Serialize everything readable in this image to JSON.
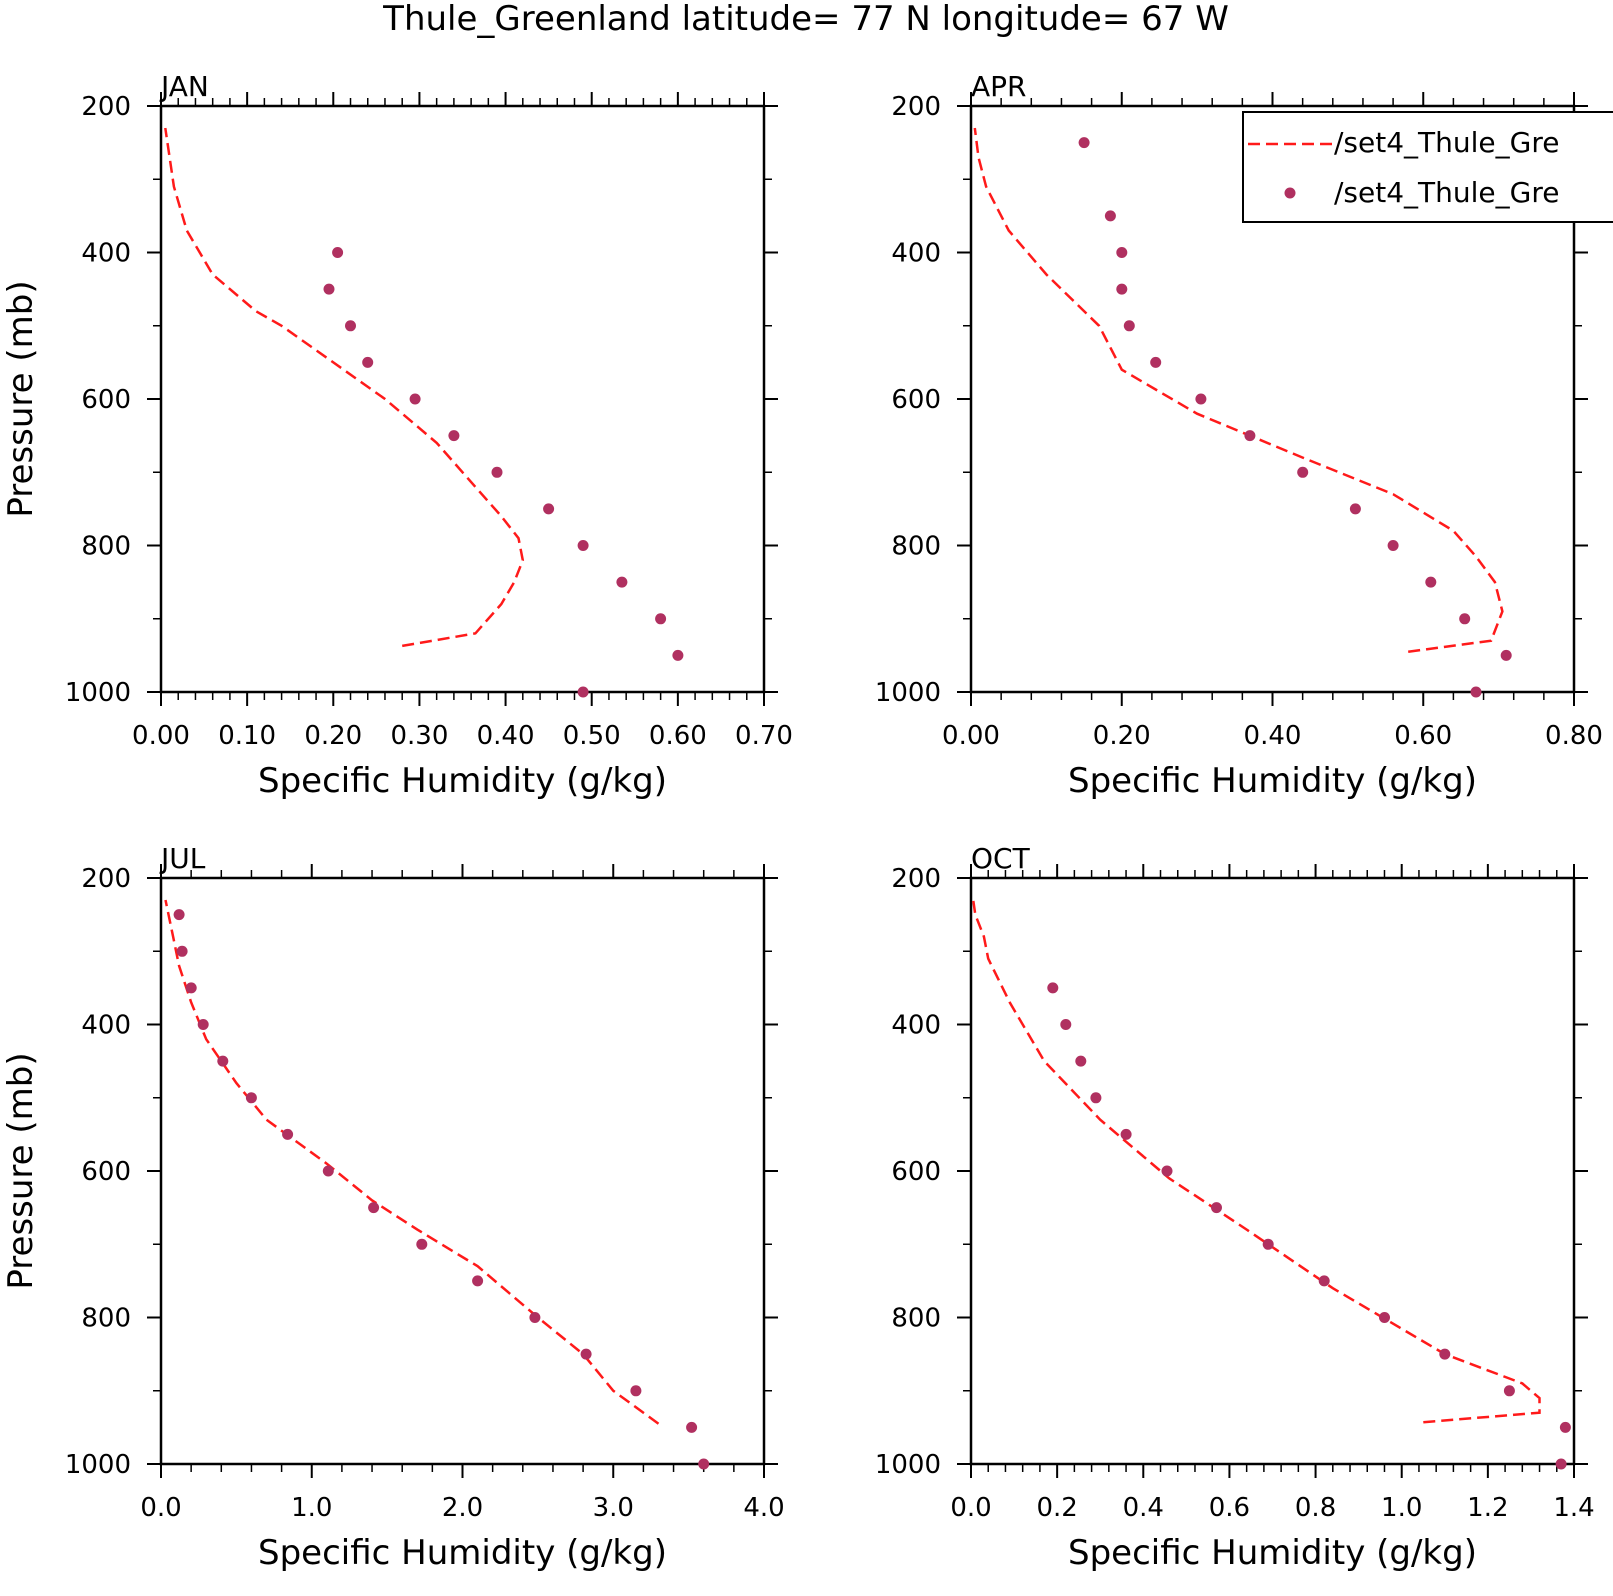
{
  "figure": {
    "title": "Thule_Greenland  latitude= 77 N longitude= 67 W"
  },
  "legend": {
    "entries": [
      {
        "label": "/set4_Thule_Gre",
        "style": "dashed-line",
        "color": "#ff1a1a"
      },
      {
        "label": "/set4_Thule_Gre",
        "style": "dot",
        "color": "#b03060"
      }
    ]
  },
  "colors": {
    "model_line": "#ff1a1a",
    "obs_dots": "#b03060",
    "axes": "#000000"
  },
  "chart_data": [
    {
      "type": "line",
      "panel": "JAN",
      "xlabel": "Specific Humidity (g/kg)",
      "ylabel": "Pressure (mb)",
      "xlim": [
        0,
        0.7
      ],
      "ylim": [
        1000,
        200
      ],
      "x_ticks": [
        0,
        0.1,
        0.2,
        0.3,
        0.4,
        0.5,
        0.6,
        0.7
      ],
      "x_tick_labels": [
        "0.00",
        "0.10",
        "0.20",
        "0.30",
        "0.40",
        "0.50",
        "0.60",
        "0.70"
      ],
      "y_ticks": [
        200,
        400,
        600,
        800,
        1000
      ],
      "y_tick_labels": [
        "200",
        "400",
        "600",
        "800",
        "1000"
      ],
      "series": [
        {
          "style": "dashed-line",
          "x": [
            0.28,
            0.365,
            0.395,
            0.41,
            0.42,
            0.415,
            0.395,
            0.365,
            0.32,
            0.26,
            0.2,
            0.14,
            0.11,
            0.06,
            0.03,
            0.015,
            0.01,
            0.005
          ],
          "y": [
            937,
            920,
            880,
            850,
            820,
            790,
            760,
            720,
            660,
            600,
            550,
            500,
            480,
            430,
            370,
            310,
            270,
            230
          ]
        },
        {
          "style": "dots",
          "x": [
            0.205,
            0.195,
            0.22,
            0.24,
            0.295,
            0.34,
            0.39,
            0.45,
            0.49,
            0.535,
            0.58,
            0.6,
            0.49
          ],
          "y": [
            400,
            450,
            500,
            550,
            600,
            650,
            700,
            750,
            800,
            850,
            900,
            950,
            1000
          ]
        }
      ]
    },
    {
      "type": "line",
      "panel": "APR",
      "xlabel": "Specific Humidity (g/kg)",
      "ylabel": "",
      "xlim": [
        0,
        0.8
      ],
      "ylim": [
        1000,
        200
      ],
      "x_ticks": [
        0,
        0.2,
        0.4,
        0.6,
        0.8
      ],
      "x_tick_labels": [
        "0.00",
        "0.20",
        "0.40",
        "0.60",
        "0.80"
      ],
      "y_ticks": [
        200,
        400,
        600,
        800,
        1000
      ],
      "y_tick_labels": [
        "200",
        "400",
        "600",
        "800",
        "1000"
      ],
      "series": [
        {
          "style": "dashed-line",
          "x": [
            0.58,
            0.69,
            0.705,
            0.695,
            0.67,
            0.64,
            0.56,
            0.44,
            0.3,
            0.2,
            0.17,
            0.1,
            0.05,
            0.02,
            0.01,
            0.005
          ],
          "y": [
            945,
            930,
            890,
            850,
            815,
            780,
            730,
            680,
            620,
            560,
            500,
            430,
            370,
            310,
            270,
            230
          ]
        },
        {
          "style": "dots",
          "x": [
            0.15,
            0.185,
            0.2,
            0.2,
            0.21,
            0.245,
            0.305,
            0.37,
            0.44,
            0.51,
            0.56,
            0.61,
            0.655,
            0.71,
            0.67
          ],
          "y": [
            250,
            350,
            400,
            450,
            500,
            550,
            600,
            650,
            700,
            750,
            800,
            850,
            900,
            950,
            1000
          ]
        }
      ]
    },
    {
      "type": "line",
      "panel": "JUL",
      "xlabel": "Specific Humidity (g/kg)",
      "ylabel": "Pressure (mb)",
      "xlim": [
        0,
        4
      ],
      "ylim": [
        1000,
        200
      ],
      "x_ticks": [
        0,
        1,
        2,
        3,
        4
      ],
      "x_tick_labels": [
        "0.0",
        "1.0",
        "2.0",
        "3.0",
        "4.0"
      ],
      "y_ticks": [
        200,
        400,
        600,
        800,
        1000
      ],
      "y_tick_labels": [
        "200",
        "400",
        "600",
        "800",
        "1000"
      ],
      "series": [
        {
          "style": "dashed-line",
          "x": [
            3.3,
            3.0,
            2.8,
            2.5,
            2.1,
            1.7,
            1.4,
            1.1,
            0.7,
            0.5,
            0.3,
            0.2,
            0.12,
            0.08,
            0.03
          ],
          "y": [
            945,
            900,
            850,
            800,
            730,
            680,
            640,
            590,
            530,
            480,
            420,
            370,
            320,
            280,
            230
          ]
        },
        {
          "style": "dots",
          "x": [
            0.12,
            0.14,
            0.2,
            0.28,
            0.41,
            0.6,
            0.84,
            1.11,
            1.41,
            1.73,
            2.1,
            2.48,
            2.82,
            3.15,
            3.52,
            3.6
          ],
          "y": [
            250,
            300,
            350,
            400,
            450,
            500,
            550,
            600,
            650,
            700,
            750,
            800,
            850,
            900,
            950,
            1000
          ]
        }
      ]
    },
    {
      "type": "line",
      "panel": "OCT",
      "xlabel": "Specific Humidity (g/kg)",
      "ylabel": "",
      "xlim": [
        0,
        1.4
      ],
      "ylim": [
        1000,
        200
      ],
      "x_ticks": [
        0,
        0.2,
        0.4,
        0.6,
        0.8,
        1.0,
        1.2,
        1.4
      ],
      "x_tick_labels": [
        "0.0",
        "0.2",
        "0.4",
        "0.6",
        "0.8",
        "1.0",
        "1.2",
        "1.4"
      ],
      "y_ticks": [
        200,
        400,
        600,
        800,
        1000
      ],
      "y_tick_labels": [
        "200",
        "400",
        "600",
        "800",
        "1000"
      ],
      "series": [
        {
          "style": "dashed-line",
          "x": [
            1.05,
            1.32,
            1.32,
            1.28,
            1.1,
            0.84,
            0.64,
            0.46,
            0.3,
            0.17,
            0.09,
            0.04,
            0.03,
            0.01,
            0.005
          ],
          "y": [
            943,
            930,
            910,
            890,
            850,
            760,
            680,
            610,
            530,
            450,
            370,
            310,
            280,
            250,
            230
          ]
        },
        {
          "style": "dots",
          "x": [
            0.19,
            0.22,
            0.255,
            0.29,
            0.36,
            0.455,
            0.57,
            0.69,
            0.82,
            0.96,
            1.1,
            1.25,
            1.38,
            1.37
          ],
          "y": [
            350,
            400,
            450,
            500,
            550,
            600,
            650,
            700,
            750,
            800,
            850,
            900,
            950,
            1000
          ]
        }
      ]
    }
  ]
}
